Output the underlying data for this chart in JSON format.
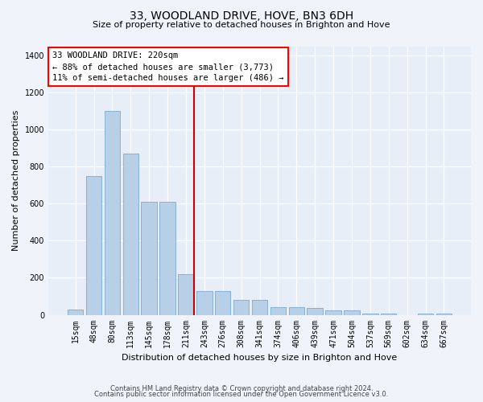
{
  "title": "33, WOODLAND DRIVE, HOVE, BN3 6DH",
  "subtitle": "Size of property relative to detached houses in Brighton and Hove",
  "xlabel": "Distribution of detached houses by size in Brighton and Hove",
  "ylabel": "Number of detached properties",
  "footer1": "Contains HM Land Registry data © Crown copyright and database right 2024.",
  "footer2": "Contains public sector information licensed under the Open Government Licence v3.0.",
  "categories": [
    "15sqm",
    "48sqm",
    "80sqm",
    "113sqm",
    "145sqm",
    "178sqm",
    "211sqm",
    "243sqm",
    "276sqm",
    "308sqm",
    "341sqm",
    "374sqm",
    "406sqm",
    "439sqm",
    "471sqm",
    "504sqm",
    "537sqm",
    "569sqm",
    "602sqm",
    "634sqm",
    "667sqm"
  ],
  "values": [
    30,
    750,
    1100,
    870,
    610,
    610,
    220,
    130,
    130,
    80,
    80,
    40,
    40,
    35,
    25,
    25,
    5,
    5,
    0,
    5,
    5
  ],
  "bar_color": "#b8cfe8",
  "bar_edgecolor": "#7aaad0",
  "annotation_text1": "33 WOODLAND DRIVE: 220sqm",
  "annotation_text2": "← 88% of detached houses are smaller (3,773)",
  "annotation_text3": "11% of semi-detached houses are larger (486) →",
  "vline_color": "#cc0000",
  "vline_x_index": 6.43,
  "ylim": [
    0,
    1450
  ],
  "yticks": [
    0,
    200,
    400,
    600,
    800,
    1000,
    1200,
    1400
  ],
  "bg_color": "#f0f4fa",
  "plot_bg_color": "#e8eef8"
}
